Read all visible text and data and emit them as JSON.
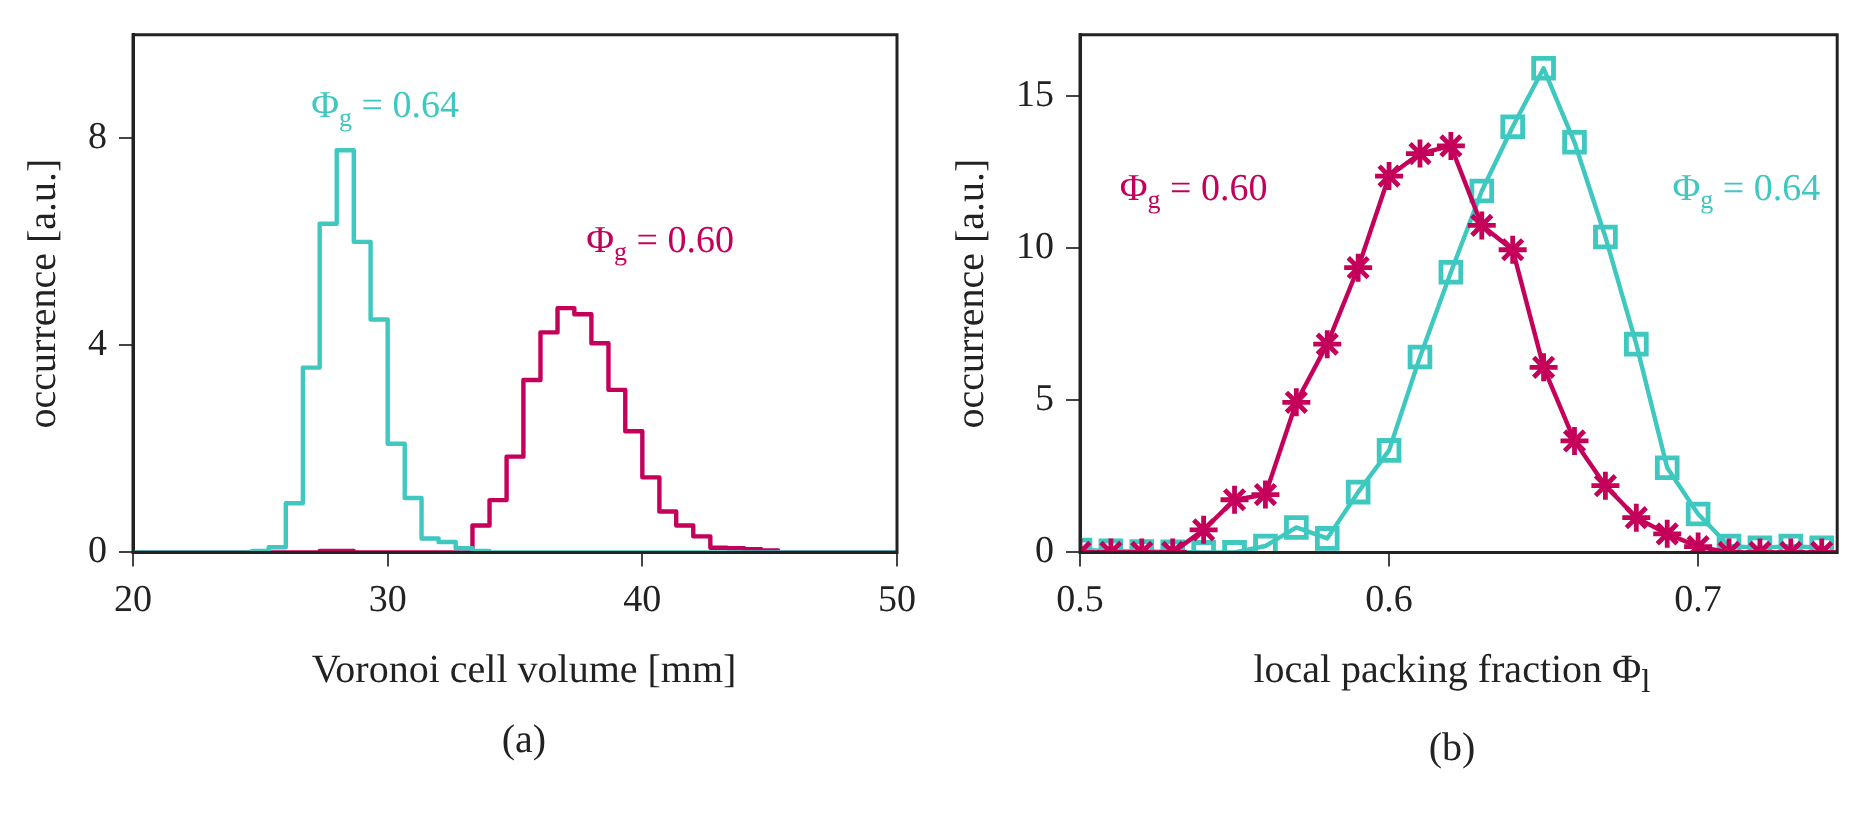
{
  "chart_data": [
    {
      "type": "histogram",
      "title": "(a)",
      "xlabel": "Voronoi cell volume [mm]",
      "ylabel": "occurrence [a.u.]",
      "bins": [
        20,
        20.67,
        21.33,
        22,
        22.67,
        23.33,
        24,
        24.67,
        25.33,
        26,
        26.67,
        27.33,
        28,
        28.67,
        29.33,
        30,
        30.67,
        31.33,
        32,
        32.67,
        33.33,
        34,
        34.67,
        35.33,
        36,
        36.67,
        37.33,
        38,
        38.67,
        39.33,
        40,
        40.67,
        41.33,
        42,
        42.67,
        43.33,
        44,
        44.67,
        45.33,
        46,
        46.67,
        47.33,
        48,
        48.67,
        49.33,
        50
      ],
      "xlim": [
        20,
        50
      ],
      "xticks": [
        20,
        30,
        40,
        50
      ],
      "ylim": [
        0,
        10
      ],
      "yticks": [
        0,
        4,
        8
      ],
      "series": [
        {
          "name": "Φ$_{g}$ = 0.64",
          "color": "#3ec8bf",
          "values": [
            0,
            0,
            0,
            0,
            0,
            0,
            0,
            0.03,
            0.1,
            0.95,
            3.57,
            6.35,
            7.77,
            6.0,
            4.5,
            2.1,
            1.05,
            0.27,
            0.2,
            0.08,
            0.03,
            0,
            0,
            0,
            0,
            0,
            0,
            0,
            0,
            0,
            0,
            0,
            0,
            0,
            0,
            0,
            0,
            0,
            0,
            0,
            0,
            0,
            0,
            0,
            0
          ]
        },
        {
          "name": "Φ$_{g}$ = 0.60",
          "color": "#c4005a",
          "values": [
            0,
            0,
            0,
            0,
            0,
            0,
            0,
            0,
            0,
            0,
            0,
            0.03,
            0.03,
            0,
            0,
            0,
            0,
            0,
            0,
            0,
            0.52,
            1.01,
            1.85,
            3.33,
            4.25,
            4.72,
            4.6,
            4.04,
            3.14,
            2.34,
            1.45,
            0.79,
            0.52,
            0.31,
            0.09,
            0.08,
            0.06,
            0.04,
            0,
            0,
            0,
            0,
            0,
            0,
            0
          ]
        }
      ]
    },
    {
      "type": "line",
      "title": "(b)",
      "xlabel": "local packing fraction Φ$_{l}$",
      "ylabel": "occurrence [a.u.]",
      "x": [
        0.5,
        0.51,
        0.52,
        0.53,
        0.54,
        0.55,
        0.56,
        0.57,
        0.58,
        0.59,
        0.6,
        0.61,
        0.62,
        0.63,
        0.64,
        0.65,
        0.66,
        0.67,
        0.68,
        0.69,
        0.7,
        0.71,
        0.72,
        0.73,
        0.74
      ],
      "xlim": [
        0.5,
        0.745
      ],
      "xticks": [
        0.5,
        0.6,
        0.7
      ],
      "ylim": [
        0,
        17
      ],
      "yticks": [
        0,
        5,
        10,
        15
      ],
      "series": [
        {
          "name": "Φ$_{g}$ = 0.60",
          "color": "#c4005a",
          "marker": "cross",
          "values": [
            0,
            0,
            0,
            0,
            0.74,
            1.73,
            1.9,
            4.93,
            6.84,
            9.35,
            12.36,
            13.1,
            13.35,
            10.74,
            9.94,
            6.08,
            3.66,
            2.19,
            1.14,
            0.61,
            0.19,
            0,
            0,
            0,
            0
          ]
        },
        {
          "name": "Φ$_{g}$ = 0.64",
          "color": "#3ec8bf",
          "marker": "square",
          "values": [
            0.08,
            0.05,
            0.03,
            0.02,
            0,
            0,
            0.21,
            0.82,
            0.46,
            1.98,
            3.35,
            6.42,
            9.2,
            11.87,
            13.98,
            15.9,
            13.47,
            10.36,
            6.84,
            2.78,
            1.26,
            0.21,
            0.15,
            0.21,
            0.15
          ]
        }
      ]
    }
  ]
}
